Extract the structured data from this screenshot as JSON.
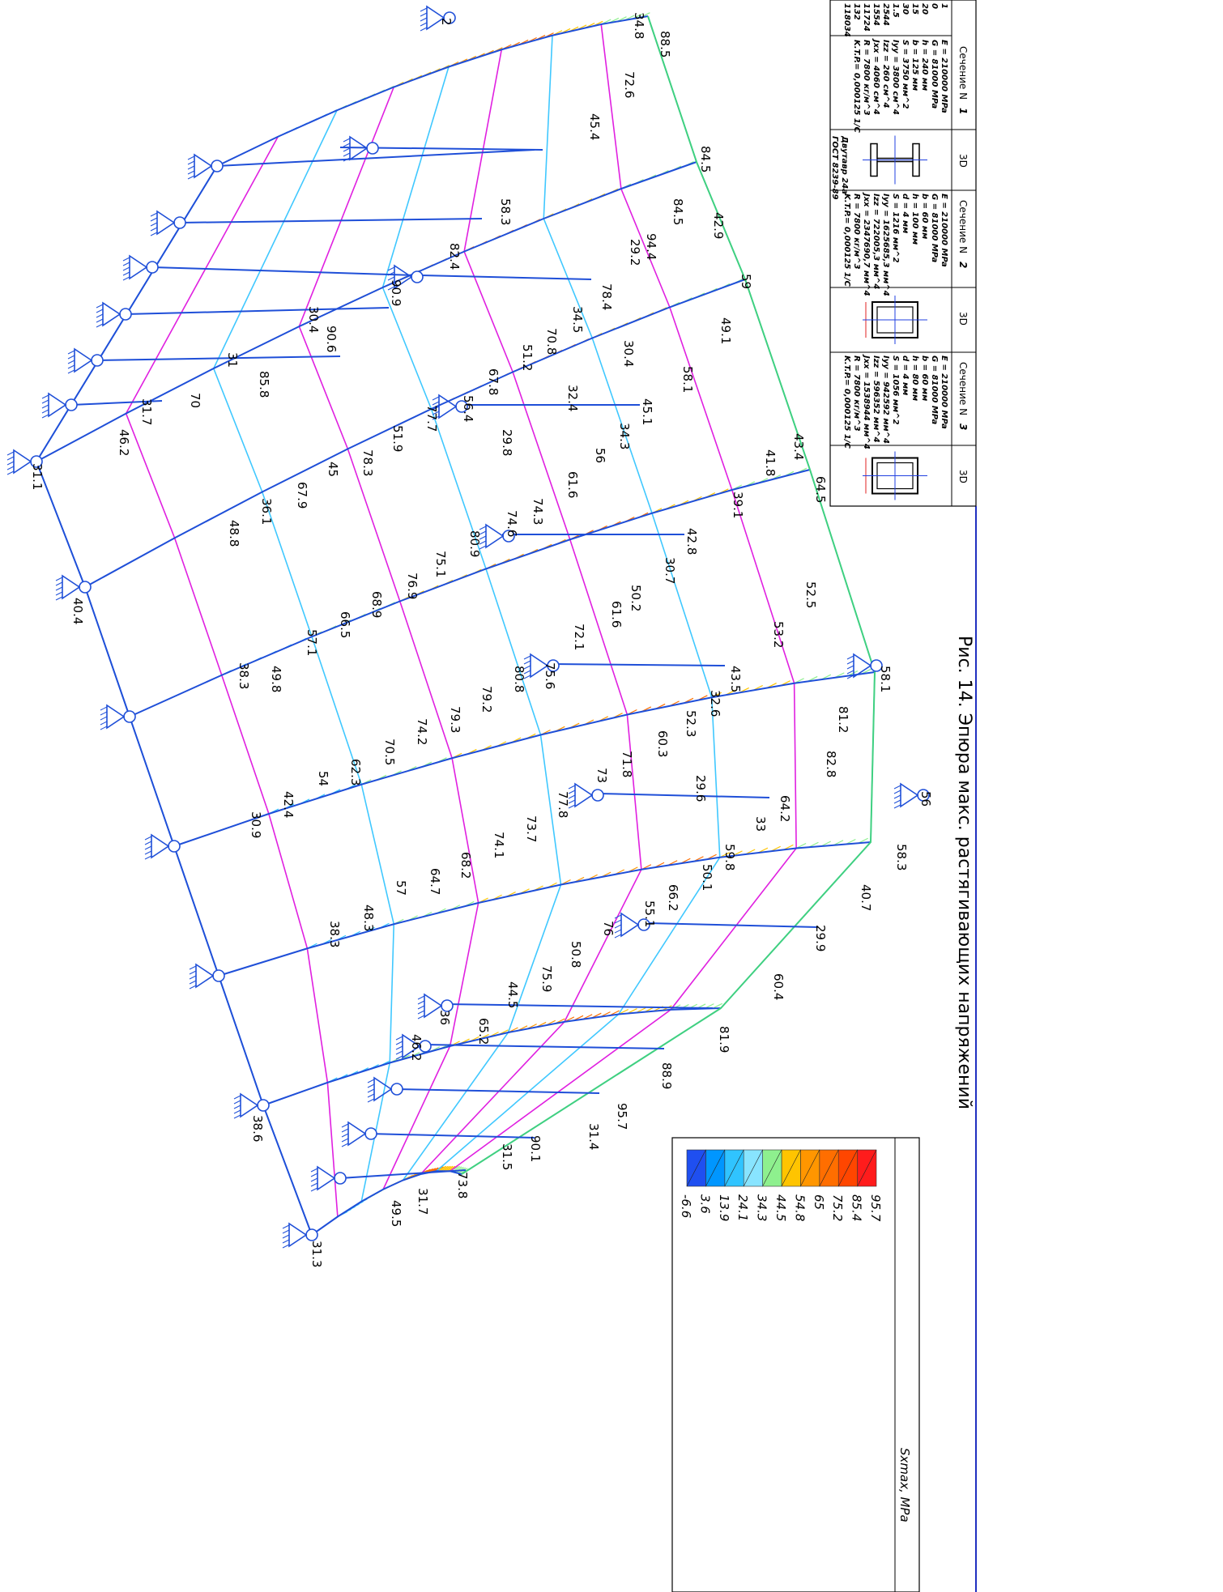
{
  "caption": "Рис. 14. Эпюра макс. растягивающих напряжений",
  "legend": {
    "title": "Sxmax, MPa",
    "values": [
      "95.7",
      "85.4",
      "75.2",
      "65",
      "54.8",
      "44.5",
      "34.3",
      "24.1",
      "13.9",
      "3.6",
      "-6.6"
    ],
    "colors": [
      "#ff1c1c",
      "#ff4600",
      "#ff6e00",
      "#ff9600",
      "#ffc400",
      "#8ef08e",
      "#88e4ff",
      "#30c4ff",
      "#0096ff",
      "#1f4ff0"
    ]
  },
  "fragments": [
    "1",
    "0",
    "20",
    "15",
    "30",
    "1.5",
    "2544",
    "1554",
    "11724",
    "132",
    "118034"
  ],
  "sections": [
    {
      "title": "Сечение N",
      "number": "1",
      "number_color": "#20c020",
      "view": "3D",
      "rows": [
        "E =   210000 MPa",
        "G =   81000 MPa",
        "h =   240 мм",
        "b =   125 мм",
        "S =   3750 мм^2",
        "Iyy =  3800 см^4",
        "Izz =  260 см^4",
        "Jxx =  4060 см^4",
        "R =     7800 кг/м^3",
        "K.T.P.= 0,000125  1/С"
      ],
      "note": [
        "Двутавр 24a",
        "ГОСТ 8239-89"
      ]
    },
    {
      "title": "Сечение N",
      "number": "2",
      "number_color": "#20d0d0",
      "view": "3D",
      "rows": [
        "E =   210000 MPa",
        "G =   81000 MPa",
        "b =   60 мм",
        "h =   100 мм",
        "d =   4 мм",
        "S =   1216 мм^2",
        "Iyy = 1625685,3 мм^4",
        "Izz = 722005,3 мм^4",
        "Jxx = 2347690,7 мм^4",
        "R =     7800 кг/м^3",
        "K.T.P.= 0,000125  1/С"
      ],
      "note": []
    },
    {
      "title": "Сечение N",
      "number": "3",
      "number_color": "#e020e0",
      "view": "3D",
      "rows": [
        "E =   210000 MPa",
        "G =   81000 MPa",
        "b =   60 мм",
        "h =   80 мм",
        "d =   4 мм",
        "S =   1056 мм^2",
        "Iyy = 942592 мм^4",
        "Izz = 596352 мм^4",
        "Jxx = 1538944 мм^4",
        "R =     7800 кг/м^3",
        "K.T.P.= 0,000125  1/С"
      ],
      "note": []
    }
  ],
  "labels": [
    "2",
    "34.8",
    "88.5",
    "72.6",
    "45.4",
    "84.5",
    "84.5",
    "42.9",
    "58.3",
    "82.4",
    "94.4",
    "29.2",
    "59",
    "90.9",
    "78.4",
    "34.5",
    "30.4",
    "90.6",
    "49.1",
    "70.8",
    "31",
    "30.4",
    "51.2",
    "85.8",
    "67.8",
    "58.1",
    "32.4",
    "56.4",
    "45.1",
    "31.7",
    "70",
    "77.7",
    "34.3",
    "51.9",
    "29.8",
    "46.2",
    "43.4",
    "56",
    "41.8",
    "78.3",
    "45",
    "31.1",
    "64.5",
    "61.6",
    "67.9",
    "39.1",
    "74.3",
    "36.1",
    "74.6",
    "48.8",
    "42.8",
    "80.9",
    "75.1",
    "30.7",
    "76.9",
    "68.9",
    "52.5",
    "50.2",
    "61.6",
    "40.4",
    "66.5",
    "57.1",
    "53.2",
    "72.1",
    "49.8",
    "38.3",
    "75.6",
    "80.8",
    "43.5",
    "58.1",
    "79.2",
    "32.6",
    "81.2",
    "79.3",
    "52.3",
    "74.2",
    "60.3",
    "70.5",
    "71.8",
    "82.8",
    "62.3",
    "54",
    "29.6",
    "73",
    "56",
    "42.4",
    "64.2",
    "77.8",
    "30.9",
    "33",
    "73.7",
    "74.1",
    "59.8",
    "58.3",
    "68.2",
    "50.1",
    "64.7",
    "57",
    "66.2",
    "40.7",
    "55.1",
    "48.3",
    "76",
    "29.9",
    "38.3",
    "50.8",
    "60.4",
    "75.9",
    "44.5",
    "36",
    "65.2",
    "81.9",
    "46.2",
    "88.9",
    "38.6",
    "31.4",
    "95.7",
    "31.5",
    "90.1",
    "73.8",
    "31.7",
    "49.5",
    "31.3"
  ]
}
